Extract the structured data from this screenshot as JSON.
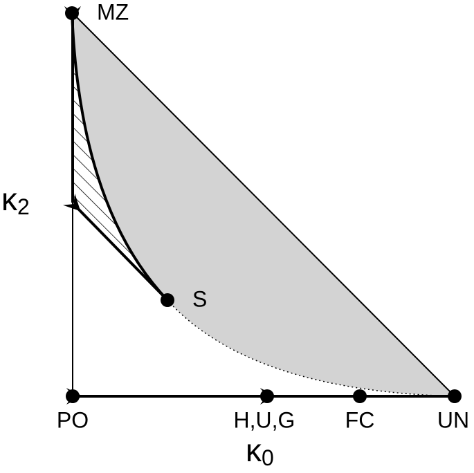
{
  "nodes": [
    {
      "label": "MZ"
    },
    {
      "label": "S"
    },
    {
      "label": "PO"
    },
    {
      "label": "H,U,G"
    },
    {
      "label": "FC"
    },
    {
      "label": "UN"
    }
  ],
  "x_axis": {
    "symbol": "κ",
    "subscript": "0"
  },
  "y_axis": {
    "symbol": "κ",
    "subscript": "2"
  }
}
